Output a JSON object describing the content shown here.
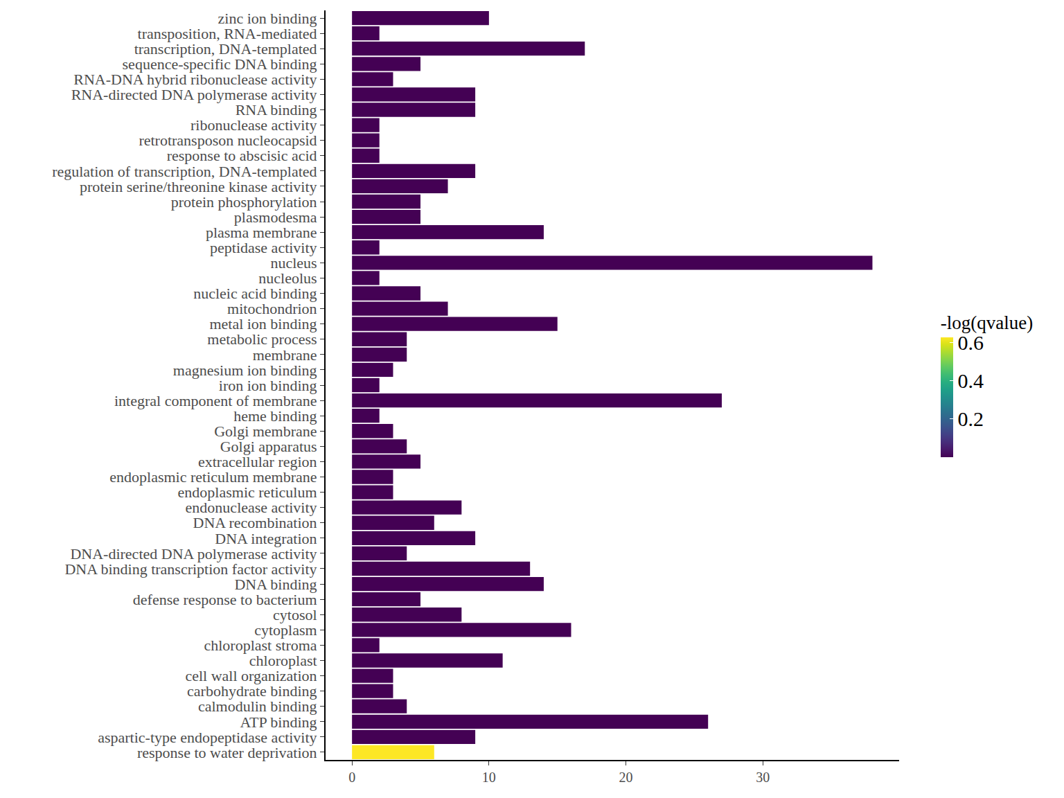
{
  "chart_data": {
    "type": "bar",
    "orientation": "horizontal",
    "categories": [
      "zinc ion binding",
      "transposition, RNA-mediated",
      "transcription, DNA-templated",
      "sequence-specific DNA binding",
      "RNA-DNA hybrid ribonuclease activity",
      "RNA-directed DNA polymerase activity",
      "RNA binding",
      "ribonuclease activity",
      "retrotransposon nucleocapsid",
      "response to abscisic acid",
      "regulation of transcription, DNA-templated",
      "protein serine/threonine kinase activity",
      "protein phosphorylation",
      "plasmodesma",
      "plasma membrane",
      "peptidase activity",
      "nucleus",
      "nucleolus",
      "nucleic acid binding",
      "mitochondrion",
      "metal ion binding",
      "metabolic process",
      "membrane",
      "magnesium ion binding",
      "iron ion binding",
      "integral component of membrane",
      "heme binding",
      "Golgi membrane",
      "Golgi apparatus",
      "extracellular region",
      "endoplasmic reticulum membrane",
      "endoplasmic reticulum",
      "endonuclease activity",
      "DNA recombination",
      "DNA integration",
      "DNA-directed DNA polymerase activity",
      "DNA binding transcription factor activity",
      "DNA binding",
      "defense response to bacterium",
      "cytosol",
      "cytoplasm",
      "chloroplast stroma",
      "chloroplast",
      "cell wall organization",
      "carbohydrate binding",
      "calmodulin binding",
      "ATP binding",
      "aspartic-type endopeptidase activity",
      "response to water deprivation"
    ],
    "values": [
      10,
      2,
      17,
      5,
      3,
      9,
      9,
      2,
      2,
      2,
      9,
      7,
      5,
      5,
      14,
      2,
      38,
      2,
      5,
      7,
      15,
      4,
      4,
      3,
      2,
      27,
      2,
      3,
      4,
      5,
      3,
      3,
      8,
      6,
      9,
      4,
      13,
      14,
      5,
      8,
      16,
      2,
      11,
      3,
      3,
      4,
      26,
      9,
      6
    ],
    "color_values": [
      0,
      0,
      0,
      0,
      0,
      0,
      0,
      0,
      0,
      0,
      0,
      0,
      0,
      0,
      0,
      0,
      0,
      0,
      0,
      0,
      0,
      0,
      0,
      0,
      0,
      0,
      0,
      0,
      0,
      0,
      0,
      0,
      0,
      0,
      0,
      0,
      0,
      0,
      0,
      0,
      0,
      0,
      0,
      0,
      0,
      0,
      0,
      0,
      0.628
    ],
    "colorbar": {
      "title": "-log(qvalue)",
      "range": [
        0,
        0.628
      ],
      "ticks": [
        0.2,
        0.4,
        0.6
      ]
    },
    "xlim": [
      -1.93,
      39.95
    ],
    "xticks": [
      0,
      10,
      20,
      30
    ],
    "grid": false
  }
}
